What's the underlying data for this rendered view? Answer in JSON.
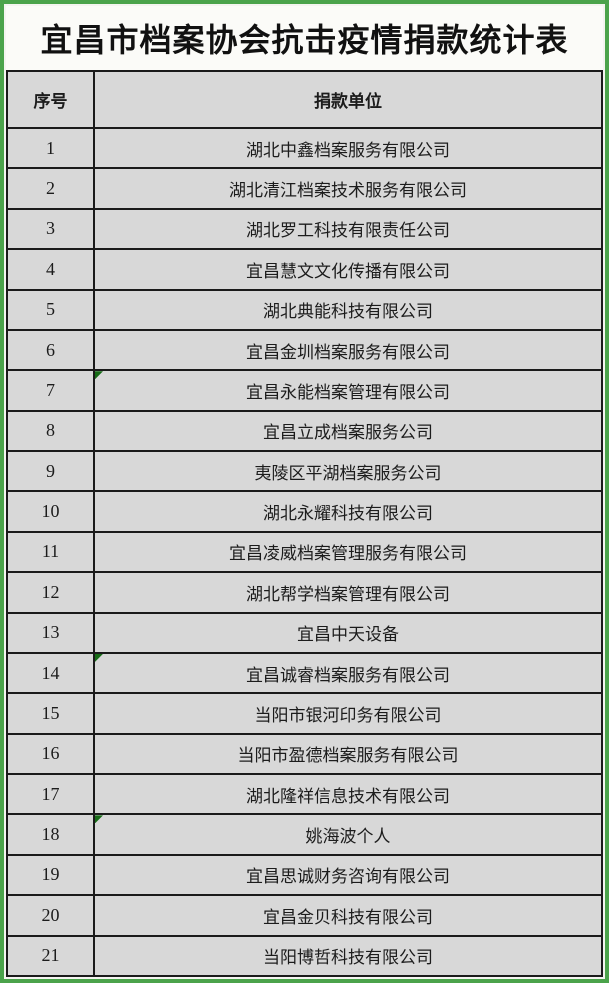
{
  "page_title": "宜昌市档案协会抗击疫情捐款统计表",
  "table": {
    "columns": [
      "序号",
      "捐款单位"
    ],
    "rows": [
      {
        "no": "1",
        "unit": "湖北中鑫档案服务有限公司",
        "error_marker": false
      },
      {
        "no": "2",
        "unit": "湖北清江档案技术服务有限公司",
        "error_marker": false
      },
      {
        "no": "3",
        "unit": "湖北罗工科技有限责任公司",
        "error_marker": false
      },
      {
        "no": "4",
        "unit": "宜昌慧文文化传播有限公司",
        "error_marker": false
      },
      {
        "no": "5",
        "unit": "湖北典能科技有限公司",
        "error_marker": false
      },
      {
        "no": "6",
        "unit": "宜昌金圳档案服务有限公司",
        "error_marker": false
      },
      {
        "no": "7",
        "unit": "宜昌永能档案管理有限公司",
        "error_marker": true
      },
      {
        "no": "8",
        "unit": "宜昌立成档案服务公司",
        "error_marker": false
      },
      {
        "no": "9",
        "unit": "夷陵区平湖档案服务公司",
        "error_marker": false
      },
      {
        "no": "10",
        "unit": "湖北永耀科技有限公司",
        "error_marker": false
      },
      {
        "no": "11",
        "unit": "宜昌凌威档案管理服务有限公司",
        "error_marker": false
      },
      {
        "no": "12",
        "unit": "湖北帮学档案管理有限公司",
        "error_marker": false
      },
      {
        "no": "13",
        "unit": "宜昌中天设备",
        "error_marker": false
      },
      {
        "no": "14",
        "unit": "宜昌诚睿档案服务有限公司",
        "error_marker": true
      },
      {
        "no": "15",
        "unit": "当阳市银河印务有限公司",
        "error_marker": false
      },
      {
        "no": "16",
        "unit": "当阳市盈德档案服务有限公司",
        "error_marker": false
      },
      {
        "no": "17",
        "unit": "湖北隆祥信息技术有限公司",
        "error_marker": false
      },
      {
        "no": "18",
        "unit": "姚海波个人",
        "error_marker": true
      },
      {
        "no": "19",
        "unit": "宜昌思诚财务咨询有限公司",
        "error_marker": false
      },
      {
        "no": "20",
        "unit": "宜昌金贝科技有限公司",
        "error_marker": false
      },
      {
        "no": "21",
        "unit": "当阳博哲科技有限公司",
        "error_marker": false
      }
    ]
  },
  "colors": {
    "frame_border": "#4ba34b",
    "cell_background": "#d8d8d8",
    "grid_line": "#1a1a1a",
    "title_background": "#fbfbf8",
    "error_marker": "#166b16"
  }
}
